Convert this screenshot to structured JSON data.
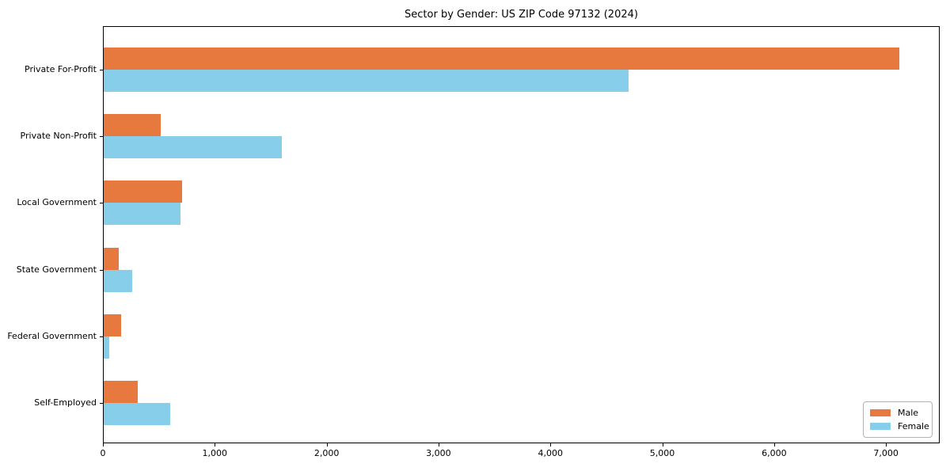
{
  "title": "Sector by Gender: US ZIP Code 97132 (2024)",
  "colors": {
    "male": "#E8793E",
    "female": "#87CEEB",
    "axis": "#000000",
    "legend_border": "#B3B3B3",
    "background": "#FFFFFF"
  },
  "legend": {
    "position": "lower right",
    "items": [
      {
        "label": "Male",
        "color": "#E8793E"
      },
      {
        "label": "Female",
        "color": "#87CEEB"
      }
    ]
  },
  "chart_data": {
    "type": "bar",
    "orientation": "horizontal",
    "title": "Sector by Gender: US ZIP Code 97132 (2024)",
    "categories": [
      "Private For-Profit",
      "Private Non-Profit",
      "Local Government",
      "State Government",
      "Federal Government",
      "Self-Employed"
    ],
    "series": [
      {
        "name": "Male",
        "color": "#E8793E",
        "values": [
          7120,
          520,
          705,
          145,
          160,
          310
        ]
      },
      {
        "name": "Female",
        "color": "#87CEEB",
        "values": [
          4700,
          1600,
          690,
          265,
          55,
          605
        ]
      }
    ],
    "xlabel": "",
    "ylabel": "",
    "xlim": [
      0,
      7480
    ],
    "xticks": [
      0,
      1000,
      2000,
      3000,
      4000,
      5000,
      6000,
      7000
    ],
    "xtick_labels": [
      "0",
      "1,000",
      "2,000",
      "3,000",
      "4,000",
      "5,000",
      "6,000",
      "7,000"
    ],
    "grid": false,
    "legend_position": "lower right"
  }
}
